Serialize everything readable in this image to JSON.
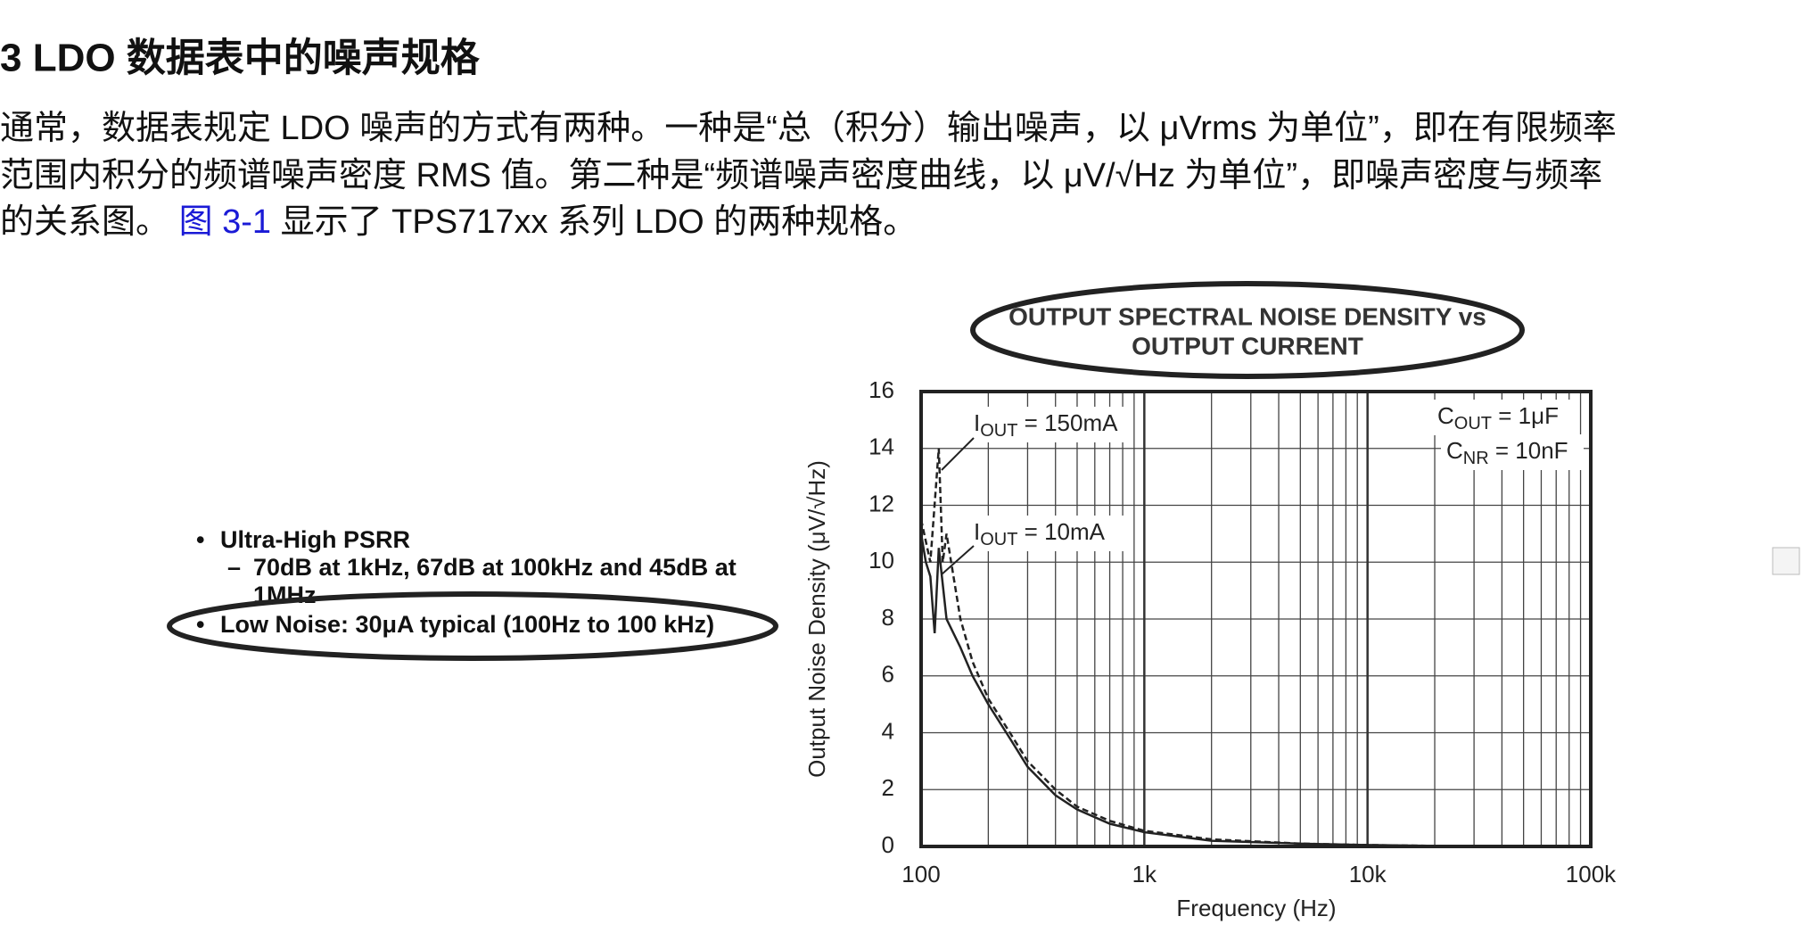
{
  "header": {
    "title": "3 LDO 数据表中的噪声规格"
  },
  "paragraph": {
    "lines": [
      "通常，数据表规定 LDO 噪声的方式有两种。一种是“总（积分）输出噪声，以 μVrms 为单位”，即在有限频率",
      "范围内积分的频谱噪声密度 RMS 值。第二种是“频谱噪声密度曲线，以 μV/√Hz 为单位”，即噪声密度与频率",
      "的关系图。"
    ],
    "link": "图 3-1",
    "tail": "显示了 TPS717xx 系列 LDO 的两种规格。"
  },
  "features": {
    "bullets": [
      {
        "text": "Ultra-High PSRR",
        "sub": [
          "70dB at 1kHz, 67dB at 100kHz and 45dB at",
          "1MHz"
        ]
      },
      {
        "text": "Low Noise: 30μA typical (100Hz to 100 kHz)"
      }
    ]
  },
  "chart_data": {
    "type": "line",
    "title": [
      "OUTPUT SPECTRAL NOISE DENSITY vs",
      "OUTPUT CURRENT"
    ],
    "x_label": "Frequency (Hz)",
    "y_label": "Output Noise Density (μV/√Hz)",
    "x_scale": "log",
    "xlim": [
      100,
      100000
    ],
    "xticks": [
      100,
      {
        "value": 1000,
        "label": "1k"
      },
      {
        "value": 10000,
        "label": "10k"
      },
      {
        "value": 100000,
        "label": "100k"
      }
    ],
    "ylim": [
      0,
      16
    ],
    "yticks": [
      0,
      2,
      4,
      6,
      8,
      10,
      12,
      14,
      16
    ],
    "grid": true,
    "series": [
      {
        "name": "IOUT = 150mA",
        "color": "#222222",
        "style": "dashed",
        "x": [
          100,
          110,
          120,
          125,
          130,
          150,
          170,
          200,
          250,
          300,
          400,
          500,
          700,
          1000,
          2000,
          5000,
          10000,
          20000,
          100000
        ],
        "values": [
          11.5,
          10,
          14,
          10,
          11,
          8,
          6.5,
          5.2,
          4,
          3,
          2,
          1.4,
          0.9,
          0.55,
          0.25,
          0.1,
          0.05,
          0.02,
          0
        ]
      },
      {
        "name": "IOUT = 10mA",
        "color": "#222222",
        "style": "solid",
        "x": [
          100,
          105,
          110,
          115,
          120,
          130,
          150,
          170,
          200,
          250,
          300,
          400,
          500,
          700,
          1000,
          2000,
          5000,
          10000,
          20000,
          100000
        ],
        "values": [
          11,
          10,
          9.5,
          7.5,
          10.5,
          8,
          7,
          6,
          5,
          3.8,
          2.8,
          1.8,
          1.3,
          0.8,
          0.5,
          0.2,
          0.1,
          0.05,
          0.02,
          0
        ]
      }
    ],
    "annotations": [
      {
        "main": "I",
        "sub": "OUT",
        "rest": " = 150mA"
      },
      {
        "main": "I",
        "sub": "OUT",
        "rest": " = 10mA"
      },
      {
        "main": "C",
        "sub": "OUT",
        "rest": " = 1μF"
      },
      {
        "main": "C",
        "sub": "NR",
        "rest": " = 10nF"
      }
    ]
  }
}
